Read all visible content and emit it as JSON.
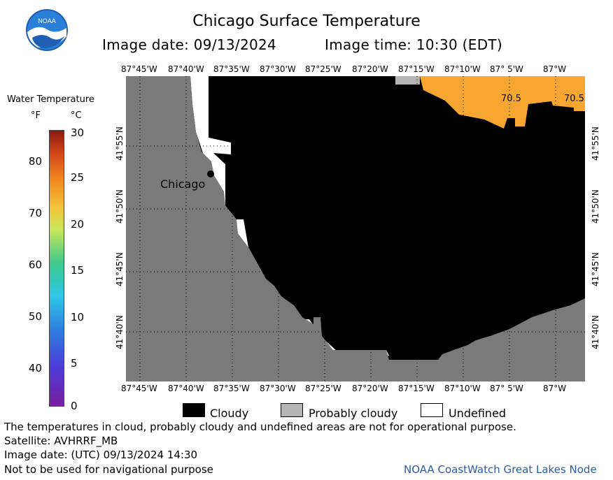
{
  "header": {
    "title": "Chicago Surface Temperature",
    "image_date": "Image date: 09/13/2024",
    "image_time": "Image time: 10:30 (EDT)",
    "logo_text": "NOAA"
  },
  "legend": {
    "title": "Water Temperature",
    "unit_f": "°F",
    "unit_c": "°C",
    "f_ticks": [
      "80",
      "70",
      "60",
      "50",
      "40"
    ],
    "c_ticks": [
      "30",
      "25",
      "20",
      "15",
      "10",
      "5",
      "0"
    ]
  },
  "map": {
    "lon_labels": [
      "87°45'W",
      "87°40'W",
      "87°35'W",
      "87°30'W",
      "87°25'W",
      "87°20'W",
      "87°15'W",
      "87°10'W",
      "87° 5'W",
      "87°W"
    ],
    "lat_labels": [
      "41°55'N",
      "41°50'N",
      "41°45'N",
      "41°40'N"
    ],
    "city": "Chicago",
    "temp_labels": [
      "70.5",
      "70.5"
    ],
    "colors": {
      "land": "#7a7a7a",
      "cloud": "#000000",
      "probably_cloudy": "#b4b4b4",
      "undefined": "#ffffff",
      "water_warm": "#f7a632"
    }
  },
  "key": {
    "cloudy": "Cloudy",
    "probably_cloudy": "Probably cloudy",
    "undefined": "Undefined"
  },
  "footer": {
    "disclaimer": "The temperatures in cloud, probably cloudy and undefined areas are not for operational purpose.",
    "satellite": "Satellite: AVHRRF_MB",
    "utc_date": "Image date: (UTC) 09/13/2024  14:30",
    "nav_warning": "Not to be used for navigational purpose",
    "credit": "NOAA CoastWatch Great Lakes Node"
  }
}
